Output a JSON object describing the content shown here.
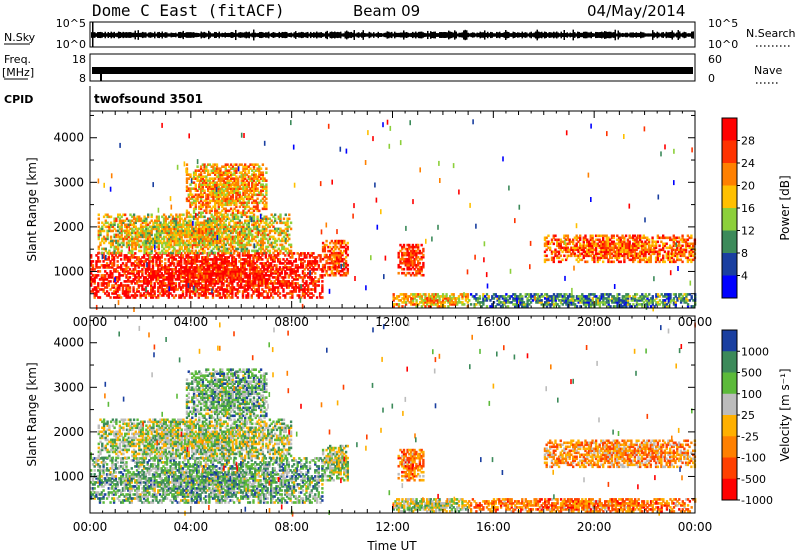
{
  "header": {
    "title": "Dome C East (fitACF)",
    "beam": "Beam 09",
    "date": "04/May/2014"
  },
  "strips": {
    "nsky_label": "N.Sky",
    "nsky_ticks": [
      "10^5",
      "10^0"
    ],
    "nsearch_label": "N.Search",
    "nsearch_ticks": [
      "10^5",
      "10^0"
    ],
    "freq_label_line1": "Freq.",
    "freq_label_line2": "[MHz]",
    "freq_ticks": [
      "18",
      "8"
    ],
    "nave_label": "Nave",
    "nave_ticks": [
      "60",
      "0"
    ],
    "cpid_label": "CPID",
    "cpid_value": "twofsound 3501"
  },
  "chart_data": [
    {
      "type": "heatmap",
      "panel": "power",
      "ylabel": "Slant Range [km]",
      "xlabel": "",
      "xticks": [
        "00:00",
        "04:00",
        "08:00",
        "12:00",
        "16:00",
        "20:00",
        "00:00"
      ],
      "yticks": [
        1000,
        2000,
        3000,
        4000
      ],
      "ylim": [
        180,
        4600
      ],
      "xlim_hours": [
        0,
        24
      ],
      "colorbar": {
        "label": "Power [dB]",
        "ticks": [
          "28",
          "24",
          "20",
          "16",
          "12",
          "8",
          "4"
        ],
        "colors": [
          "#ff0000",
          "#ff3300",
          "#ff8000",
          "#ffc000",
          "#8ccf3a",
          "#3c8a5a",
          "#1a3fa0",
          "#0000ff"
        ]
      },
      "regions": [
        {
          "t0": 0.0,
          "t1": 9.2,
          "r0": 400,
          "r1": 1400,
          "level": 0.9
        },
        {
          "t0": 0.3,
          "t1": 8.0,
          "r0": 1400,
          "r1": 2300,
          "level": 0.55
        },
        {
          "t0": 3.8,
          "t1": 7.0,
          "r0": 2300,
          "r1": 3400,
          "level": 0.65
        },
        {
          "t0": 9.2,
          "t1": 10.2,
          "r0": 900,
          "r1": 1700,
          "level": 0.8
        },
        {
          "t0": 12.2,
          "t1": 13.2,
          "r0": 900,
          "r1": 1600,
          "level": 0.85
        },
        {
          "t0": 12.0,
          "t1": 15.0,
          "r0": 200,
          "r1": 500,
          "level": 0.6
        },
        {
          "t0": 18.0,
          "t1": 24.0,
          "r0": 1200,
          "r1": 1800,
          "level": 0.75
        },
        {
          "t0": 15.0,
          "t1": 24.0,
          "r0": 200,
          "r1": 500,
          "level": 0.3
        }
      ]
    },
    {
      "type": "heatmap",
      "panel": "velocity",
      "ylabel": "Slant Range [km]",
      "xlabel": "Time UT",
      "xticks": [
        "00:00",
        "04:00",
        "08:00",
        "12:00",
        "16:00",
        "20:00",
        "00:00"
      ],
      "yticks": [
        1000,
        2000,
        3000,
        4000
      ],
      "ylim": [
        180,
        4600
      ],
      "xlim_hours": [
        0,
        24
      ],
      "colorbar": {
        "label": "Velocity [m s⁻¹]",
        "ticks": [
          "1000",
          "500",
          "100",
          "25",
          "-25",
          "-100",
          "-500",
          "-1000"
        ],
        "colors": [
          "#1a3fa0",
          "#3c8a5a",
          "#5cba3a",
          "#bcbcbc",
          "#ffb000",
          "#ff8000",
          "#ff4000",
          "#ff0000"
        ]
      },
      "regions": [
        {
          "t0": 0.0,
          "t1": 9.2,
          "r0": 400,
          "r1": 1400,
          "level": 0.7
        },
        {
          "t0": 0.3,
          "t1": 8.0,
          "r0": 1400,
          "r1": 2300,
          "level": 0.6
        },
        {
          "t0": 3.8,
          "t1": 7.0,
          "r0": 2300,
          "r1": 3400,
          "level": 0.7
        },
        {
          "t0": 9.2,
          "t1": 10.2,
          "r0": 900,
          "r1": 1700,
          "level": 0.6
        },
        {
          "t0": 12.2,
          "t1": 13.2,
          "r0": 900,
          "r1": 1600,
          "level": 0.3
        },
        {
          "t0": 12.0,
          "t1": 15.0,
          "r0": 200,
          "r1": 500,
          "level": 0.6
        },
        {
          "t0": 18.0,
          "t1": 24.0,
          "r0": 1200,
          "r1": 1800,
          "level": 0.35
        },
        {
          "t0": 15.0,
          "t1": 24.0,
          "r0": 200,
          "r1": 500,
          "level": 0.3
        }
      ]
    }
  ]
}
